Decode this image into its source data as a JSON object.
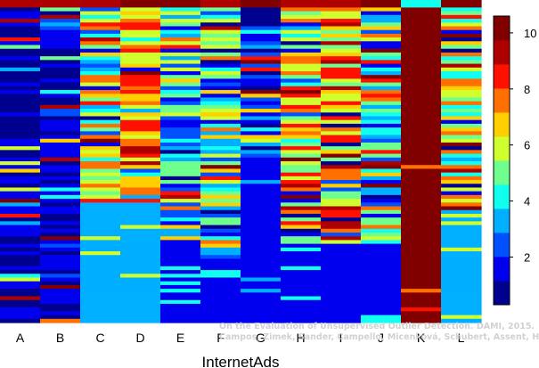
{
  "chart_data": {
    "type": "heatmap",
    "xlabel": "InternetAds",
    "categories": [
      "A",
      "B",
      "C",
      "D",
      "E",
      "F",
      "G",
      "H",
      "I",
      "J",
      "K",
      "L"
    ],
    "color_scale": {
      "min": 0.3,
      "max": 10.6,
      "ticks": [
        2,
        4,
        6,
        8,
        10
      ],
      "colormap": [
        "#00008f",
        "#0000ef",
        "#0050ff",
        "#00afff",
        "#10ffef",
        "#6fff8f",
        "#cfff2f",
        "#ffcf00",
        "#ff7000",
        "#ff1000",
        "#af0000",
        "#800000"
      ]
    },
    "rows_per_column": 86,
    "columns": [
      {
        "name": "A",
        "base": 1.0,
        "spread": 1.8,
        "stripe_rate": 0.25,
        "top": 9.5,
        "tail_value": 1.0,
        "tail_start": 1.0
      },
      {
        "name": "B",
        "base": 1.2,
        "spread": 1.8,
        "stripe_rate": 0.25,
        "top": 9.5,
        "tail_value": 1.2,
        "tail_start": 1.0
      },
      {
        "name": "C",
        "base": 6.0,
        "spread": 4.5,
        "stripe_rate": 0.4,
        "top": 9.0,
        "tail_value": 3.0,
        "tail_start": 0.62
      },
      {
        "name": "D",
        "base": 7.5,
        "spread": 3.5,
        "stripe_rate": 0.35,
        "top": 10.0,
        "tail_value": 3.0,
        "tail_start": 0.62
      },
      {
        "name": "E",
        "base": 3.5,
        "spread": 5.0,
        "stripe_rate": 0.4,
        "top": 10.0,
        "tail_value": 1.5,
        "tail_start": 0.75
      },
      {
        "name": "F",
        "base": 4.5,
        "spread": 5.0,
        "stripe_rate": 0.4,
        "top": 9.0,
        "tail_value": 1.5,
        "tail_start": 0.8
      },
      {
        "name": "G",
        "base": 2.0,
        "spread": 4.0,
        "stripe_rate": 0.3,
        "top": 10.0,
        "tail_value": 1.2,
        "tail_start": 0.5
      },
      {
        "name": "H",
        "base": 6.5,
        "spread": 4.5,
        "stripe_rate": 0.4,
        "top": 9.5,
        "tail_value": 1.5,
        "tail_start": 0.75
      },
      {
        "name": "I",
        "base": 7.5,
        "spread": 4.5,
        "stripe_rate": 0.4,
        "top": 9.5,
        "tail_value": 1.5,
        "tail_start": 0.75
      },
      {
        "name": "J",
        "base": 3.5,
        "spread": 4.0,
        "stripe_rate": 0.35,
        "top": 10.0,
        "tail_value": 1.5,
        "tail_start": 0.75
      },
      {
        "name": "K",
        "base": 10.3,
        "spread": 0.4,
        "stripe_rate": 0.08,
        "top": 4.5,
        "tail_value": 10.3,
        "tail_start": 1.0
      },
      {
        "name": "L",
        "base": 6.0,
        "spread": 4.5,
        "stripe_rate": 0.4,
        "top": 10.0,
        "tail_value": 3.0,
        "tail_start": 0.65
      }
    ]
  },
  "watermark": {
    "line1": "On the Evaluation of Unsupervised Outlier Detection. DAMI, 2015.",
    "line2": "Campos, Zimek, Sander, Campello, Micenková, Schubert, Assent, Houle"
  }
}
